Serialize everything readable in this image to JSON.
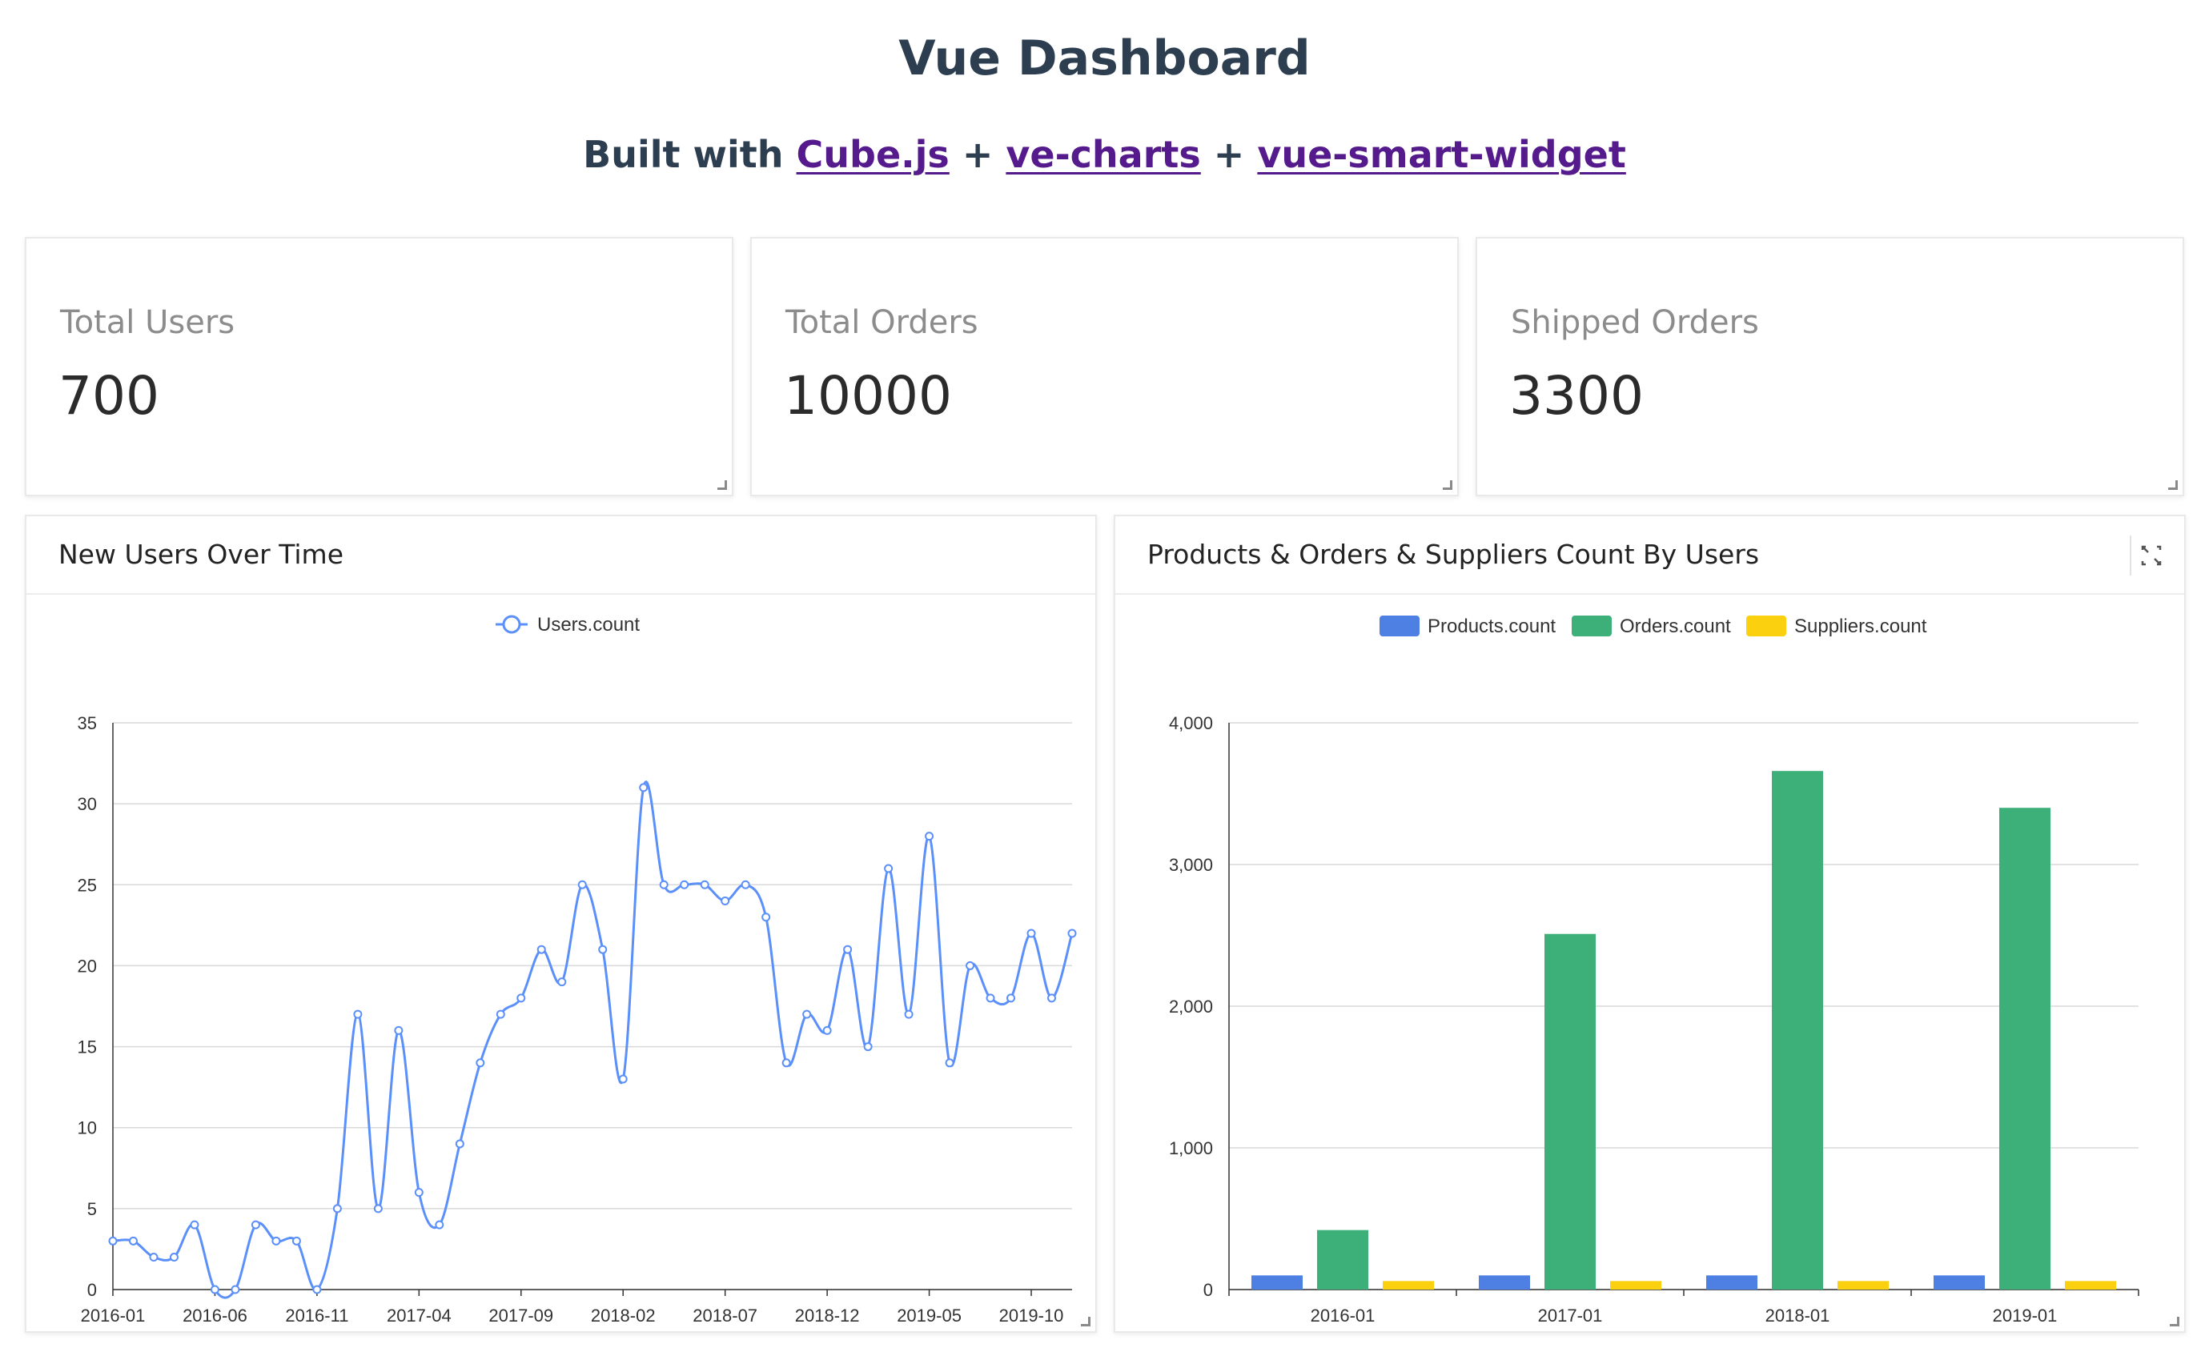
{
  "header": {
    "title": "Vue Dashboard",
    "built_with": "Built with",
    "plus": "+",
    "links": [
      "Cube.js",
      "ve-charts",
      "vue-smart-widget"
    ]
  },
  "kpis": [
    {
      "label": "Total Users",
      "value": "700"
    },
    {
      "label": "Total Orders",
      "value": "10000"
    },
    {
      "label": "Shipped Orders",
      "value": "3300"
    }
  ],
  "line_chart": {
    "title": "New Users Over Time"
  },
  "bar_chart": {
    "title": "Products & Orders & Suppliers Count By Users"
  },
  "colors": {
    "line": "#5b8ff9",
    "products": "#4e7fe3",
    "orders": "#3daf78",
    "suppliers": "#fbd10f",
    "grid": "#d9d9d9"
  },
  "icons": {
    "expand": "expand-icon",
    "resize": "resize-handle-icon"
  },
  "chart_data": [
    {
      "type": "line",
      "title": "New Users Over Time",
      "series": [
        {
          "name": "Users.count",
          "values": [
            3,
            3,
            2,
            2,
            4,
            0,
            0,
            4,
            3,
            3,
            0,
            5,
            17,
            5,
            16,
            6,
            4,
            9,
            14,
            17,
            18,
            21,
            19,
            25,
            21,
            13,
            31,
            25,
            25,
            25,
            24,
            25,
            23,
            14,
            17,
            16,
            21,
            15,
            26,
            17,
            28,
            14,
            20,
            18,
            18,
            22,
            18,
            22
          ]
        }
      ],
      "x_start": "2016-01",
      "x_ticks": [
        "2016-01",
        "2016-06",
        "2016-11",
        "2017-04",
        "2017-09",
        "2018-02",
        "2018-07",
        "2018-12",
        "2019-05",
        "2019-10"
      ],
      "y_ticks": [
        "0",
        "5",
        "10",
        "15",
        "20",
        "25",
        "30",
        "35"
      ],
      "ylim": [
        0,
        35
      ],
      "legend": "top-center",
      "grid": true
    },
    {
      "type": "bar",
      "title": "Products & Orders & Suppliers Count By Users",
      "categories": [
        "2016-01",
        "2017-01",
        "2018-01",
        "2019-01"
      ],
      "series": [
        {
          "name": "Products.count",
          "values": [
            100,
            100,
            100,
            100
          ]
        },
        {
          "name": "Orders.count",
          "values": [
            420,
            2510,
            3660,
            3400
          ]
        },
        {
          "name": "Suppliers.count",
          "values": [
            60,
            60,
            60,
            60
          ]
        }
      ],
      "y_ticks": [
        "0",
        "1,000",
        "2,000",
        "3,000",
        "4,000"
      ],
      "ylim": [
        0,
        4000
      ],
      "legend": "top-center",
      "grid": true
    }
  ]
}
